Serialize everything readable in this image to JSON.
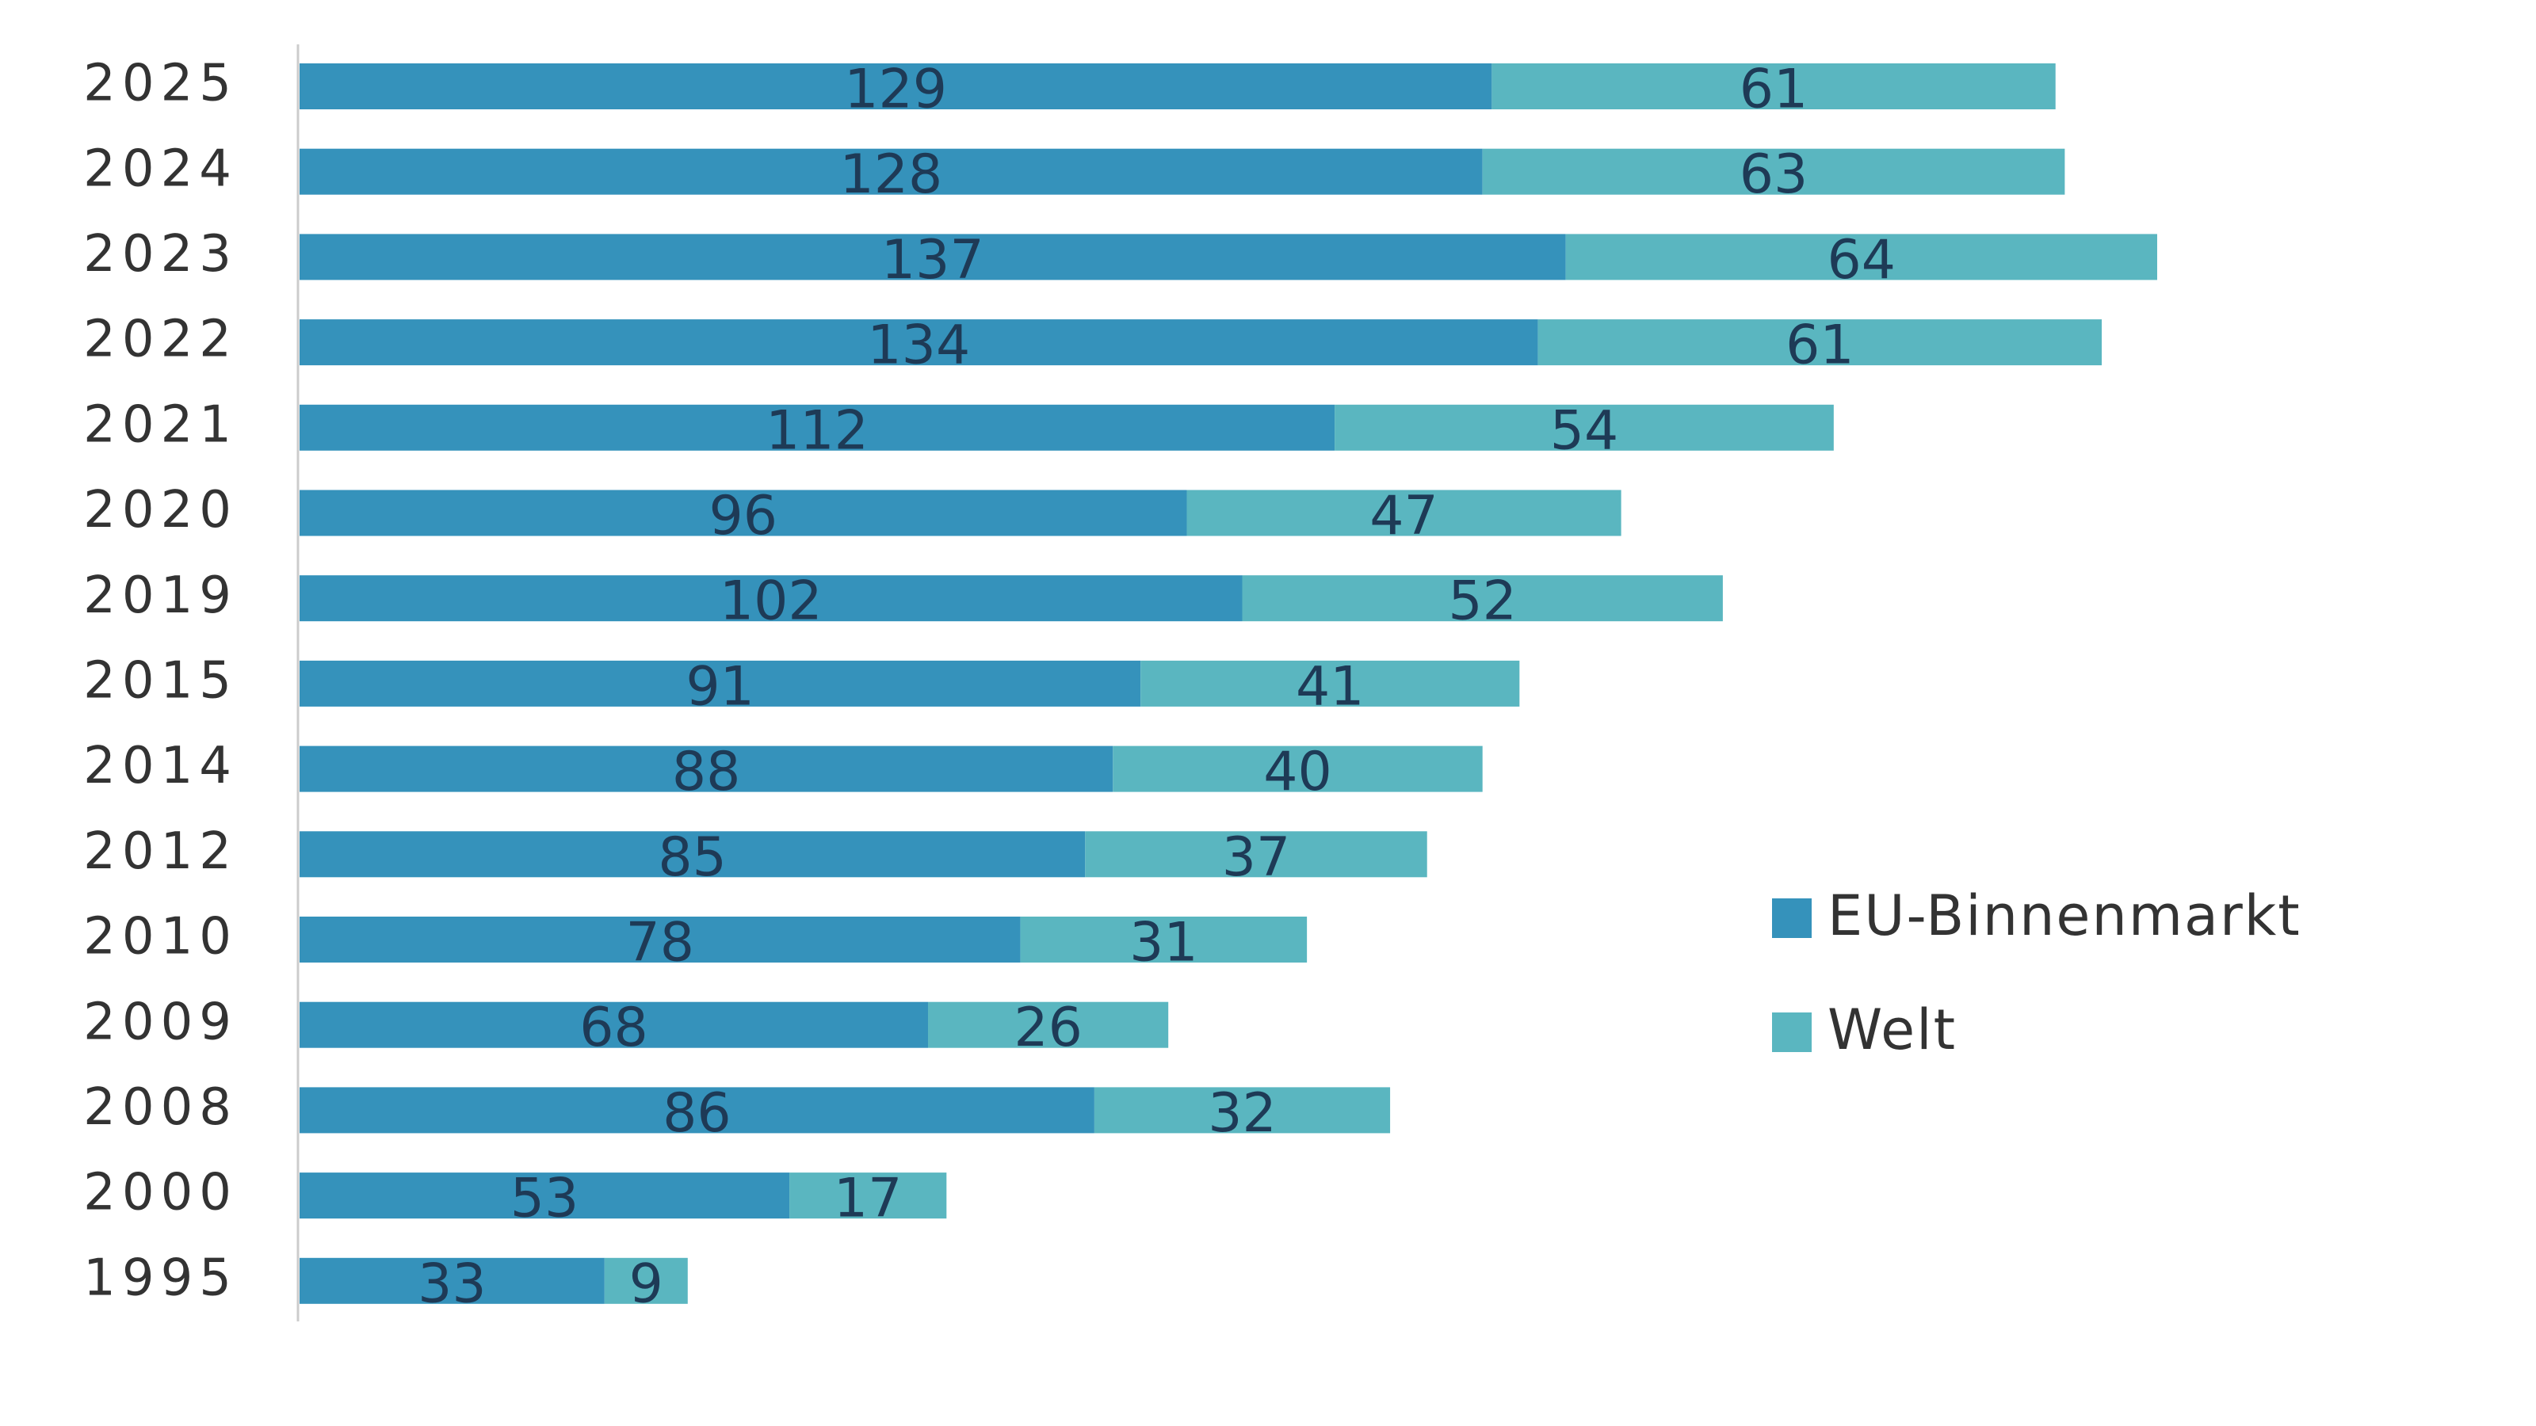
{
  "chart_data": {
    "type": "stacked-bar-horizontal",
    "categories": [
      "2025",
      "2024",
      "2023",
      "2022",
      "2021",
      "2020",
      "2019",
      "2015",
      "2014",
      "2012",
      "2010",
      "2009",
      "2008",
      "2000",
      "1995"
    ],
    "series": [
      {
        "name": "EU-Binnenmarkt",
        "color": "#3592bb",
        "values": [
          129,
          128,
          137,
          134,
          112,
          96,
          102,
          91,
          88,
          85,
          78,
          68,
          86,
          53,
          33
        ]
      },
      {
        "name": "Welt",
        "color": "#5ab6c0",
        "values": [
          61,
          63,
          64,
          61,
          54,
          47,
          52,
          41,
          40,
          37,
          31,
          26,
          32,
          17,
          9
        ]
      }
    ],
    "legend": "right"
  }
}
